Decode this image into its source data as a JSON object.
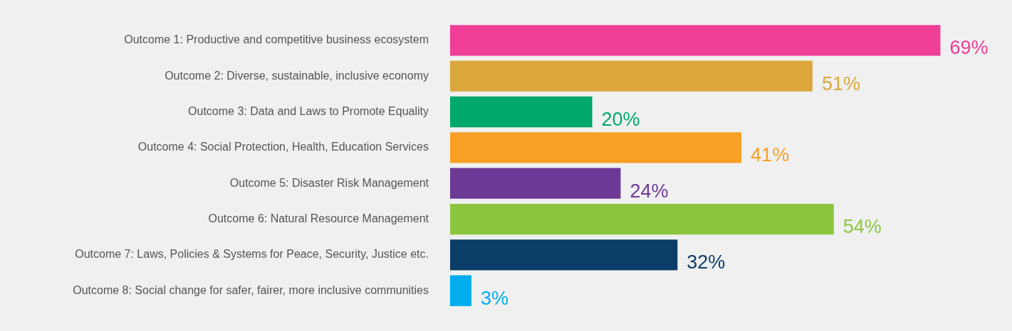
{
  "chart_data": {
    "type": "bar",
    "orientation": "horizontal",
    "categories": [
      "Outcome 1: Productive and competitive business ecosystem",
      "Outcome 2: Diverse, sustainable, inclusive economy",
      "Outcome 3: Data and Laws to Promote Equality",
      "Outcome 4: Social Protection, Health, Education Services",
      "Outcome 5: Disaster Risk Management",
      "Outcome 6: Natural Resource Management",
      "Outcome 7: Laws, Policies & Systems for Peace, Security, Justice etc.",
      "Outcome 8: Social change for safer, fairer, more inclusive communities"
    ],
    "values": [
      69,
      51,
      20,
      41,
      24,
      54,
      32,
      3
    ],
    "colors": [
      "#ee3e96",
      "#dba73b",
      "#00a86b",
      "#f89f25",
      "#6d3996",
      "#8cc63f",
      "#0b3d69",
      "#00aeef"
    ],
    "value_labels": [
      "69%",
      "51%",
      "20%",
      "41%",
      "24%",
      "54%",
      "32%",
      "3%"
    ],
    "legend": false
  }
}
